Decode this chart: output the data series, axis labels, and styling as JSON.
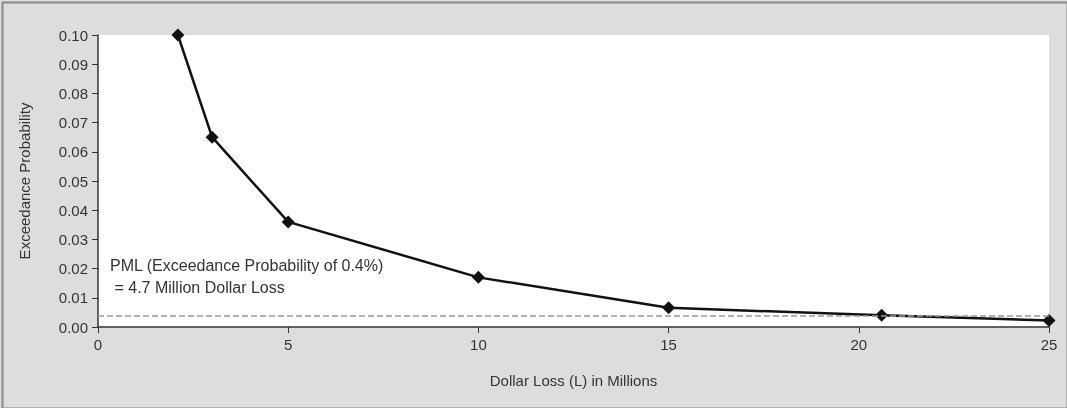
{
  "chart_data": {
    "type": "line",
    "xlabel": "Dollar Loss (L) in Millions",
    "ylabel": "Exceedance Probability",
    "x": [
      2.1,
      3,
      5,
      10,
      15,
      20.6,
      25
    ],
    "series": [
      {
        "color": "#111111",
        "values": [
          0.1,
          0.065,
          0.036,
          0.017,
          0.0066,
          0.004,
          0.0022
        ]
      }
    ],
    "marker": "diamond",
    "line_style": "solid",
    "xlim": [
      0,
      25
    ],
    "xticks": [
      0,
      5,
      10,
      15,
      20,
      25
    ],
    "ylim": [
      0,
      0.1
    ],
    "yticks": [
      {
        "value": 0,
        "label": "0.00"
      },
      0.01,
      0.02,
      0.03,
      0.04,
      0.05,
      0.06,
      0.07,
      0.08,
      0.09,
      {
        "value": 0.1,
        "label": "0.10"
      }
    ],
    "ref_lines": [
      {
        "axis": "y",
        "value": 0.004,
        "color": "#999999",
        "line_style": "dashed"
      }
    ],
    "annotations": [
      "PML (Exceedance Probability of 0.4%)\n = 4.7 Million Dollar Loss"
    ],
    "grid": false
  }
}
